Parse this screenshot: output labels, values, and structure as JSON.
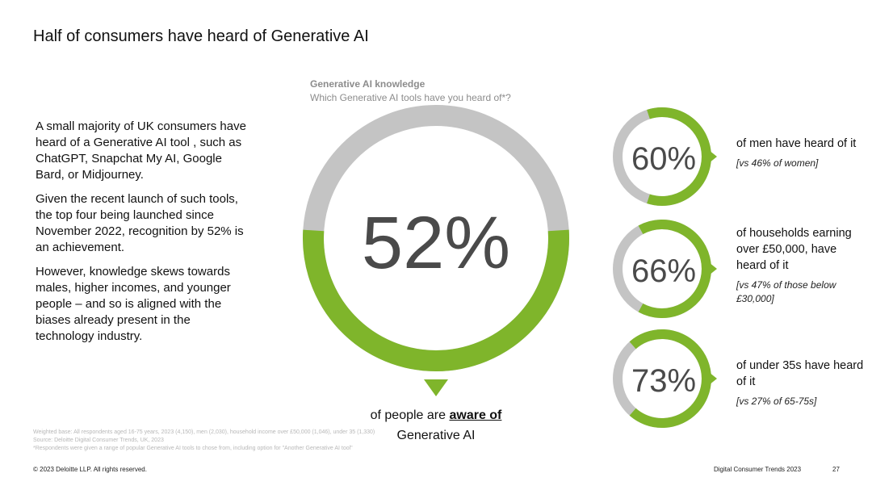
{
  "page": {
    "title": "Half of consumers have heard of Generative AI",
    "footer_left": "© 2023 Deloitte LLP. All rights reserved.",
    "footer_right": "Digital Consumer Trends 2023",
    "page_number": "27"
  },
  "body": {
    "paragraphs": [
      "A small majority of UK consumers have heard of a Generative AI tool , such as ChatGPT, Snapchat My AI, Google Bard, or Midjourney.",
      "Given the recent launch of such tools, the top four being launched since November 2022, recognition by 52% is an achievement.",
      "However, knowledge skews towards males, higher incomes, and younger people – and so is aligned with the biases already present in the technology industry."
    ]
  },
  "chart_header": {
    "title": "Generative AI knowledge",
    "subtitle": "Which Generative AI tools have you heard of*?"
  },
  "main_caption": {
    "prefix": "of people are",
    "emphasis": "aware of",
    "suffix": "Generative AI"
  },
  "footnotes": [
    "Weighted base: All respondents aged 16-75 years, 2023 (4,150), men (2,030), household income over £50,000 (1,046), under 35 (1,330)",
    "Source: Deloitte Digital Consumer Trends, UK, 2023",
    "*Respondents were given a range of popular Generative AI tools to chose from, including option for \"Another Generative AI tool\""
  ],
  "colors": {
    "green": "#7fb52b",
    "grey": "#c4c4c4",
    "text": "#4a4a4a"
  },
  "chart_data": [
    {
      "type": "pie",
      "name": "overall",
      "value": 52,
      "label": "52%"
    },
    {
      "type": "pie",
      "name": "men",
      "value": 60,
      "label": "60%",
      "description": "of men have heard of it",
      "comparison": "[vs 46% of women]"
    },
    {
      "type": "pie",
      "name": "households",
      "value": 66,
      "label": "66%",
      "description": "of households earning over £50,000, have heard of it",
      "comparison": "[vs 47% of those below £30,000]"
    },
    {
      "type": "pie",
      "name": "under-35s",
      "value": 73,
      "label": "73%",
      "description": "of under 35s have heard of it",
      "comparison": "[vs 27% of 65-75s]"
    }
  ]
}
